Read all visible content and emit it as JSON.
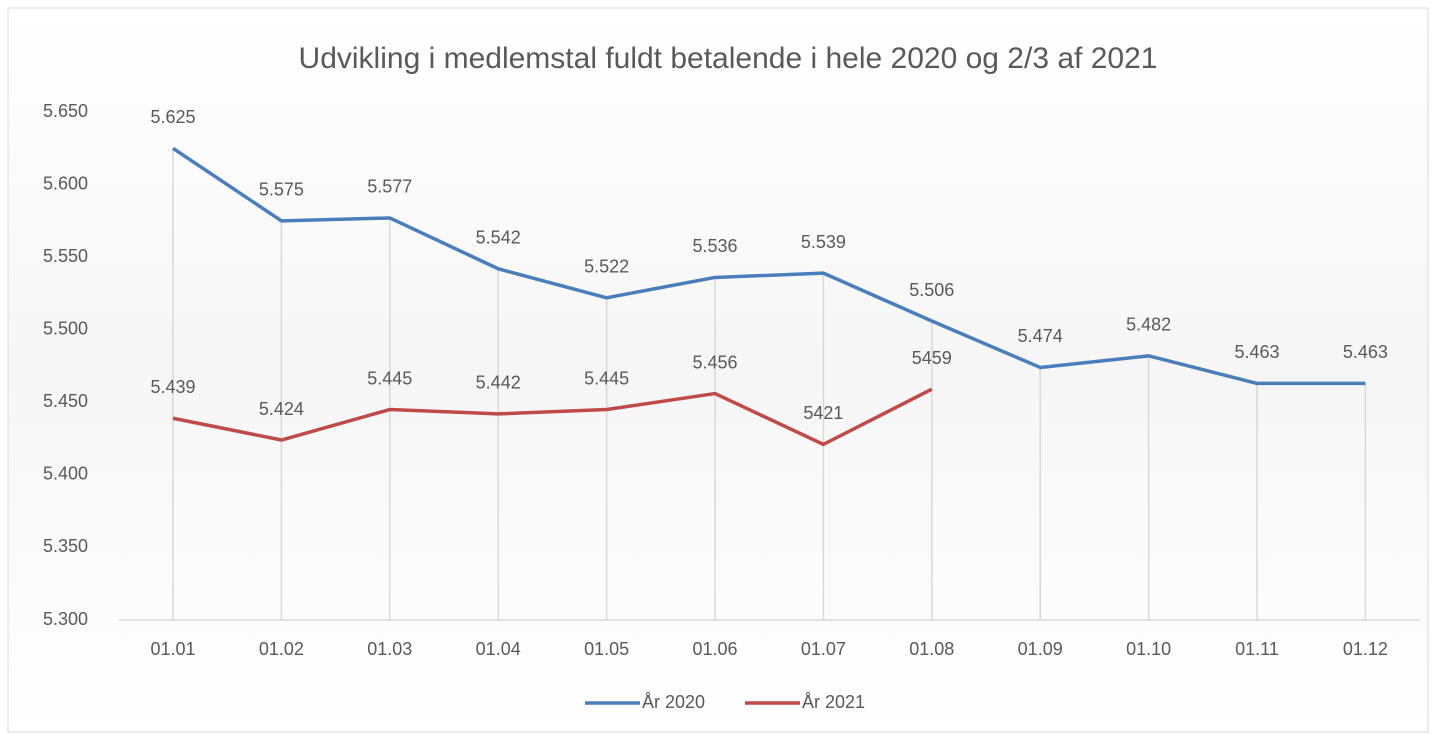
{
  "chart_data": {
    "type": "line",
    "title": "Udvikling i medlemstal fuldt betalende i hele 2020 og 2/3 af 2021",
    "categories": [
      "01.01",
      "01.02",
      "01.03",
      "01.04",
      "01.05",
      "01.06",
      "01.07",
      "01.08",
      "01.09",
      "01.10",
      "01.11",
      "01.12"
    ],
    "series": [
      {
        "name": "År 2020",
        "color": "#4a7ebb",
        "values": [
          5625,
          5575,
          5577,
          5542,
          5522,
          5536,
          5539,
          5506,
          5474,
          5482,
          5463,
          5463
        ],
        "value_labels": [
          "5.625",
          "5.575",
          "5.577",
          "5.542",
          "5.522",
          "5.536",
          "5.539",
          "5.506",
          "5.474",
          "5.482",
          "5.463",
          "5.463"
        ]
      },
      {
        "name": "År 2021",
        "color": "#be4b48",
        "values": [
          5439,
          5424,
          5445,
          5442,
          5445,
          5456,
          5421,
          5459,
          null,
          null,
          null,
          null
        ],
        "value_labels": [
          "5.439",
          "5.424",
          "5.445",
          "5.442",
          "5.445",
          "5.456",
          "5421",
          "5459",
          null,
          null,
          null,
          null
        ]
      }
    ],
    "ylim": [
      5300,
      5650
    ],
    "yticks": [
      {
        "value": 5300,
        "label": "5.300"
      },
      {
        "value": 5350,
        "label": "5.350"
      },
      {
        "value": 5400,
        "label": "5.400"
      },
      {
        "value": 5450,
        "label": "5.450"
      },
      {
        "value": 5500,
        "label": "5.500"
      },
      {
        "value": 5550,
        "label": "5.550"
      },
      {
        "value": 5600,
        "label": "5.600"
      },
      {
        "value": 5650,
        "label": "5.650"
      }
    ],
    "grid": false,
    "drop_lines": true,
    "legend": "bottom"
  }
}
